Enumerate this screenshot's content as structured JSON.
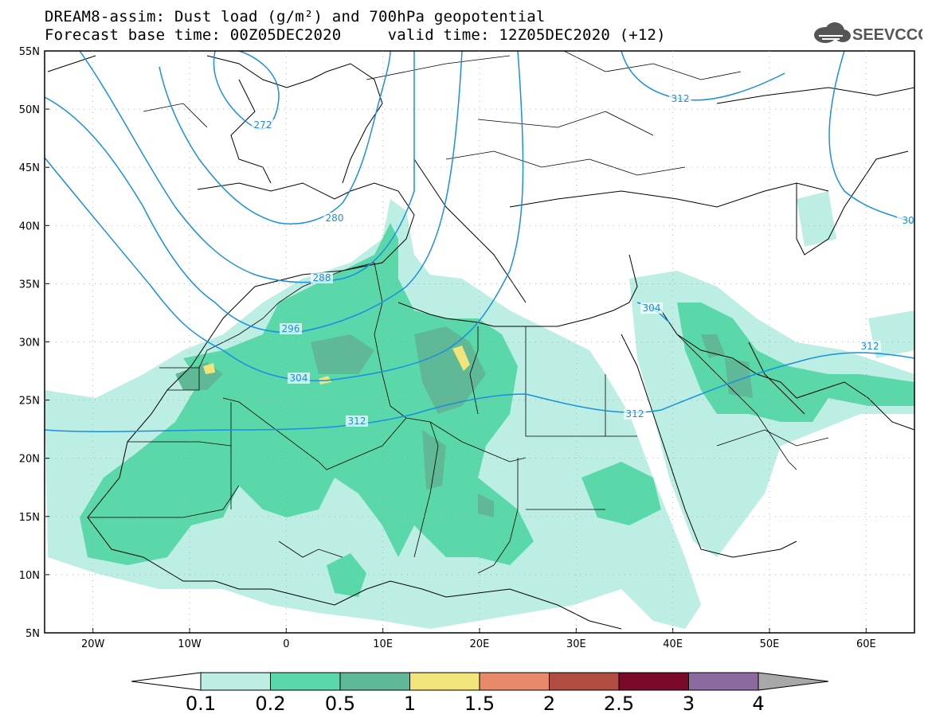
{
  "header": {
    "title_line1": "DREAM8-assim: Dust load (g/m²) and 700hPa geopotential",
    "title_line2": "Forecast base time: 00Z05DEC2020     valid time: 12Z05DEC2020 (+12)",
    "logo_text": "SEEVCCC"
  },
  "map": {
    "lon_range": [
      -25,
      65
    ],
    "lat_range": [
      5,
      55
    ],
    "lat_ticks": [
      "55N",
      "50N",
      "45N",
      "40N",
      "35N",
      "30N",
      "25N",
      "20N",
      "15N",
      "10N",
      "5N"
    ],
    "lon_ticks": [
      "20W",
      "10W",
      "0",
      "10E",
      "20E",
      "30E",
      "40E",
      "50E",
      "60E"
    ],
    "contour_labels": [
      "272",
      "280",
      "288",
      "296",
      "304",
      "312",
      "304",
      "312",
      "312",
      "312",
      "30"
    ],
    "contour_color": "#1a8fe0"
  },
  "colorbar": {
    "labels": [
      "0.1",
      "0.2",
      "0.5",
      "1",
      "1.5",
      "2",
      "2.5",
      "3",
      "4"
    ],
    "colors": [
      "#bdeee4",
      "#5ad8aa",
      "#5fb896",
      "#f0e47a",
      "#e8896a",
      "#b04c40",
      "#7a0a28",
      "#8c6aa0",
      "#a8a8a8"
    ]
  }
}
